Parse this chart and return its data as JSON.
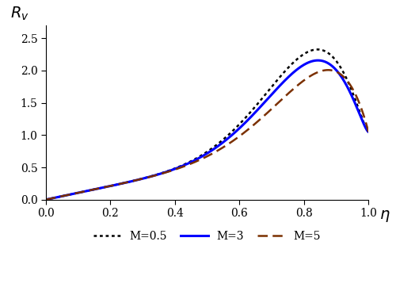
{
  "title": "",
  "ylabel": "$R_v$",
  "xlabel": "$\\eta$",
  "xlim": [
    0.0,
    1.0
  ],
  "ylim": [
    0.0,
    2.7
  ],
  "yticks": [
    0.0,
    0.5,
    1.0,
    1.5,
    2.0,
    2.5
  ],
  "xticks": [
    0.0,
    0.2,
    0.4,
    0.6,
    0.8,
    1.0
  ],
  "curves": [
    {
      "label": "M=0.5",
      "color": "#000000",
      "linestyle": "dotted",
      "linewidth": 1.8,
      "params": [
        2.32,
        0.83,
        0.18,
        1.05,
        8.0,
        0.07
      ]
    },
    {
      "label": "M=3",
      "color": "#0000ff",
      "linestyle": "solid",
      "linewidth": 2.2,
      "params": [
        2.15,
        0.83,
        0.16,
        1.05,
        8.0,
        0.07
      ]
    },
    {
      "label": "M=5",
      "color": "#7B3000",
      "linestyle": "dashed",
      "linewidth": 1.8,
      "params": [
        2.0,
        0.86,
        0.14,
        1.05,
        7.0,
        0.07
      ]
    }
  ],
  "legend_loc": "lower center",
  "background_color": "#ffffff"
}
